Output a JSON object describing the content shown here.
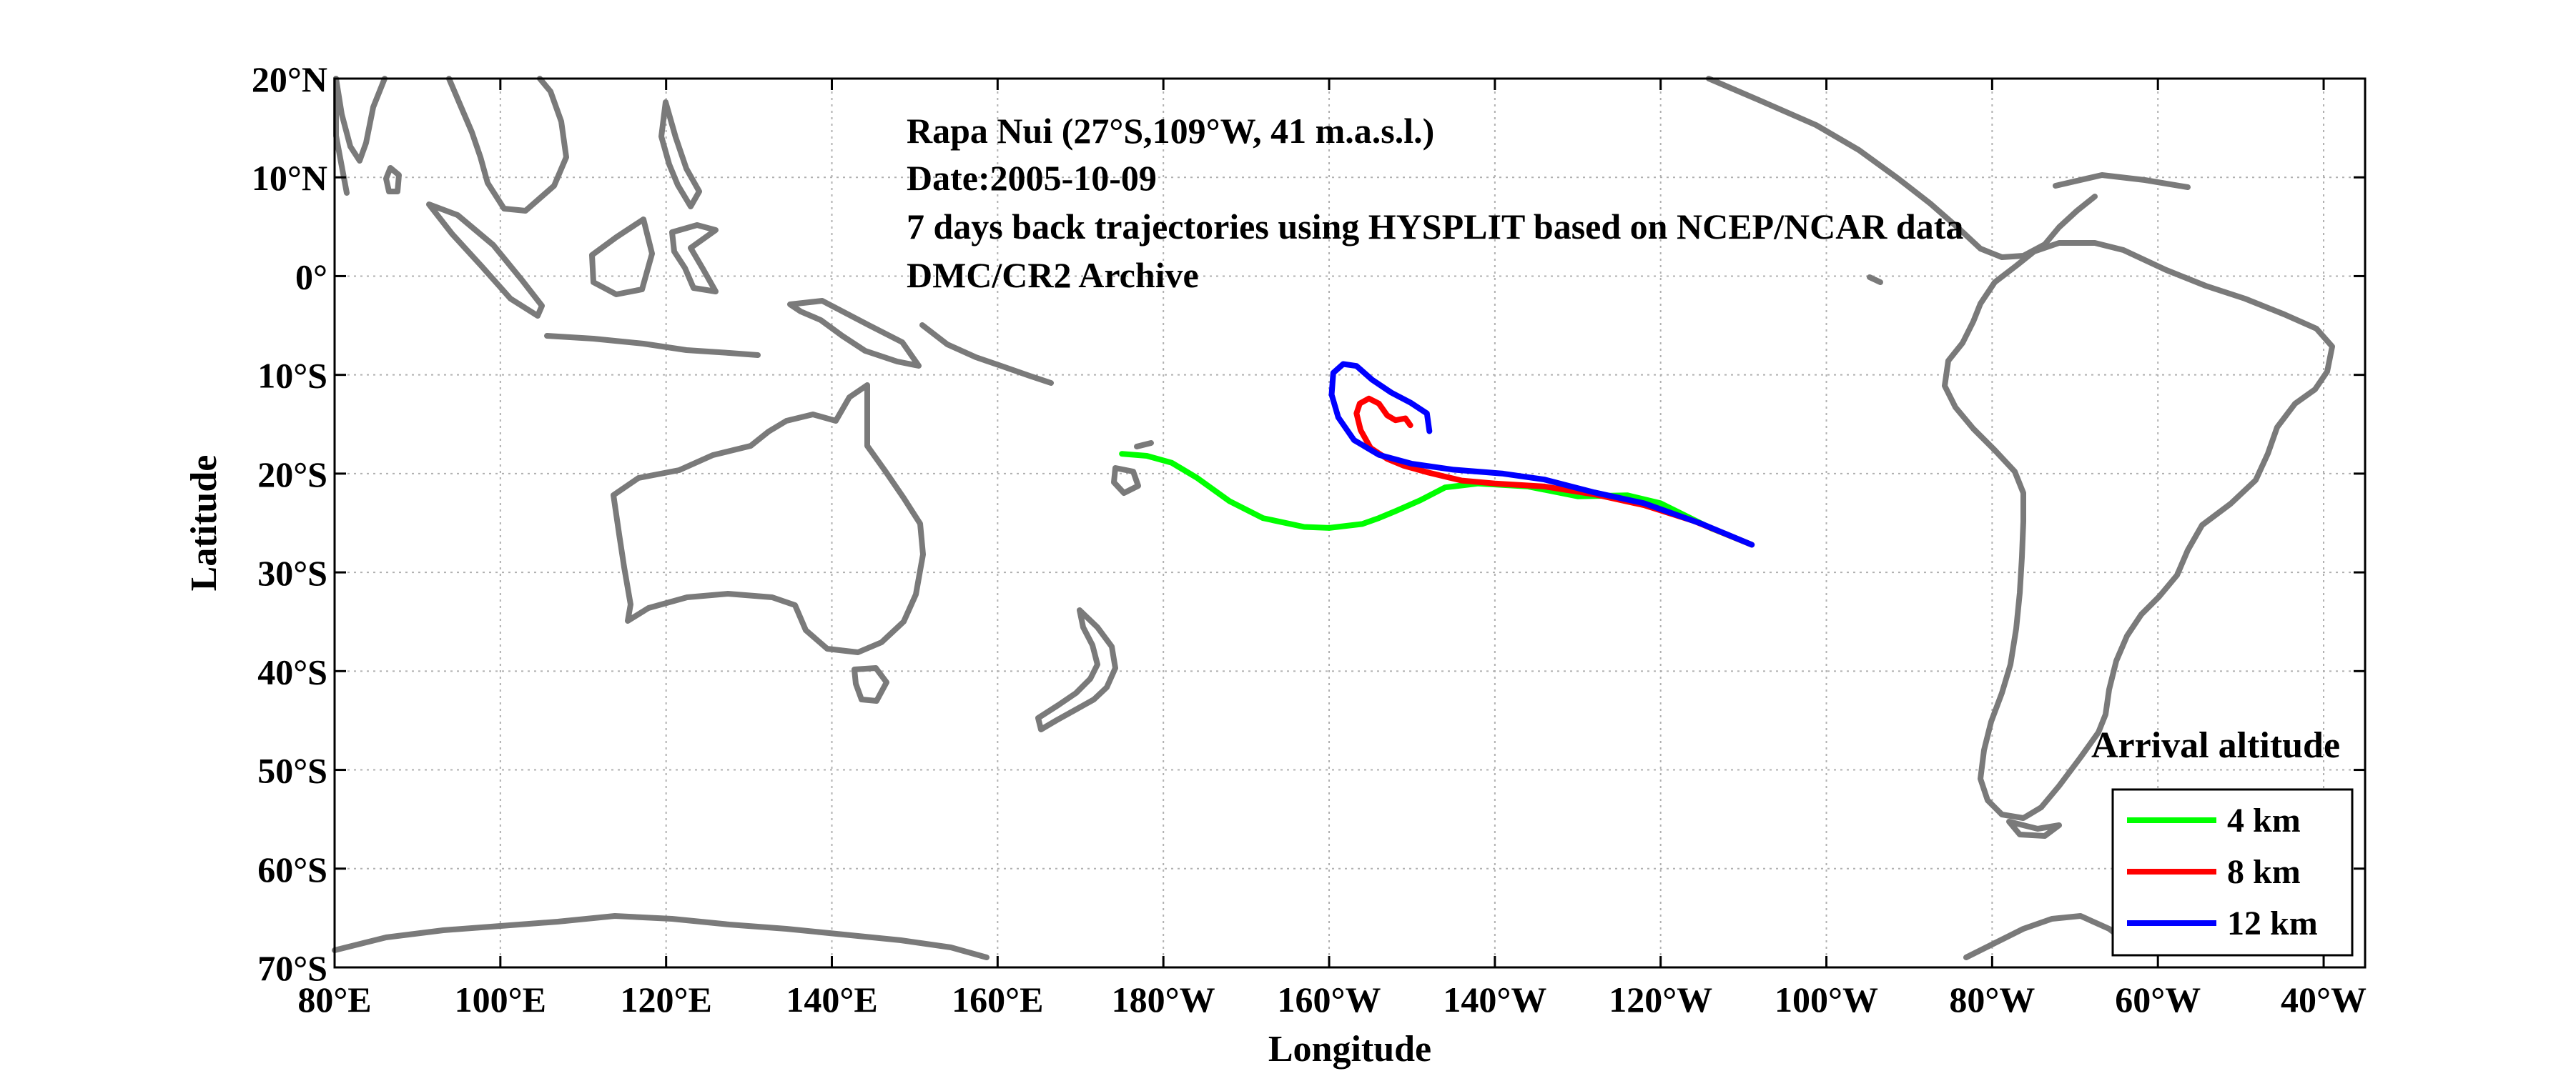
{
  "chart_data": {
    "type": "line",
    "xlabel": "Longitude",
    "ylabel": "Latitude",
    "xlim": [
      80,
      325
    ],
    "ylim": [
      -70,
      20
    ],
    "x_ticks": [
      {
        "value": 80,
        "label": "80°E"
      },
      {
        "value": 100,
        "label": "100°E"
      },
      {
        "value": 120,
        "label": "120°E"
      },
      {
        "value": 140,
        "label": "140°E"
      },
      {
        "value": 160,
        "label": "160°E"
      },
      {
        "value": 180,
        "label": "180°W"
      },
      {
        "value": 200,
        "label": "160°W"
      },
      {
        "value": 220,
        "label": "140°W"
      },
      {
        "value": 240,
        "label": "120°W"
      },
      {
        "value": 260,
        "label": "100°W"
      },
      {
        "value": 280,
        "label": "80°W"
      },
      {
        "value": 300,
        "label": "60°W"
      },
      {
        "value": 320,
        "label": "40°W"
      }
    ],
    "y_ticks": [
      {
        "value": 20,
        "label": "20°N"
      },
      {
        "value": 10,
        "label": "10°N"
      },
      {
        "value": 0,
        "label": "0°"
      },
      {
        "value": -10,
        "label": "10°S"
      },
      {
        "value": -20,
        "label": "20°S"
      },
      {
        "value": -30,
        "label": "30°S"
      },
      {
        "value": -40,
        "label": "40°S"
      },
      {
        "value": -50,
        "label": "50°S"
      },
      {
        "value": -60,
        "label": "60°S"
      },
      {
        "value": -70,
        "label": "70°S"
      }
    ],
    "annotations": [
      "Rapa Nui (27°S,109°W, 41 m.a.s.l.)",
      "Date:2005-10-09",
      "7 days back trajectories using HYSPLIT based on NCEP/NCAR data",
      "DMC/CR2 Archive"
    ],
    "legend_title": "Arrival altitude",
    "legend_position": "bottom-right",
    "grid": true,
    "series": [
      {
        "name": "4 km",
        "color": "#00ff00",
        "points": [
          [
            251,
            -27.2
          ],
          [
            246,
            -25.5
          ],
          [
            240,
            -23
          ],
          [
            236,
            -22.2
          ],
          [
            230,
            -22.3
          ],
          [
            224,
            -21.3
          ],
          [
            218,
            -21
          ],
          [
            214,
            -21.4
          ],
          [
            211,
            -22.7
          ],
          [
            208,
            -23.8
          ],
          [
            206,
            -24.5
          ],
          [
            204,
            -25.1
          ],
          [
            200,
            -25.5
          ],
          [
            197,
            -25.4
          ],
          [
            192,
            -24.5
          ],
          [
            188,
            -22.8
          ],
          [
            184,
            -20.4
          ],
          [
            181,
            -18.9
          ],
          [
            178,
            -18.2
          ],
          [
            175,
            -18
          ]
        ]
      },
      {
        "name": "8 km",
        "color": "#ff0000",
        "points": [
          [
            251,
            -27.2
          ],
          [
            244,
            -24.8
          ],
          [
            238,
            -23.2
          ],
          [
            232,
            -22.1
          ],
          [
            226,
            -21.3
          ],
          [
            220,
            -21
          ],
          [
            216,
            -20.7
          ],
          [
            212,
            -19.9
          ],
          [
            209,
            -19.2
          ],
          [
            207,
            -18.5
          ],
          [
            205,
            -17.4
          ],
          [
            203.8,
            -15.6
          ],
          [
            203.3,
            -13.9
          ],
          [
            203.7,
            -12.9
          ],
          [
            204.8,
            -12.4
          ],
          [
            206,
            -12.9
          ],
          [
            207,
            -14.1
          ],
          [
            208,
            -14.6
          ],
          [
            209.2,
            -14.4
          ],
          [
            209.8,
            -15.1
          ]
        ]
      },
      {
        "name": "12 km",
        "color": "#0000ff",
        "points": [
          [
            251,
            -27.2
          ],
          [
            245,
            -25.1
          ],
          [
            238,
            -23
          ],
          [
            232,
            -21.9
          ],
          [
            226,
            -20.6
          ],
          [
            221,
            -20
          ],
          [
            215,
            -19.6
          ],
          [
            210,
            -19
          ],
          [
            206,
            -18.1
          ],
          [
            203,
            -16.6
          ],
          [
            201.1,
            -14.3
          ],
          [
            200.3,
            -12
          ],
          [
            200.5,
            -9.8
          ],
          [
            201.7,
            -8.9
          ],
          [
            203.3,
            -9.1
          ],
          [
            205.2,
            -10.5
          ],
          [
            207.5,
            -11.8
          ],
          [
            209.8,
            -12.8
          ],
          [
            211.8,
            -13.9
          ],
          [
            212.1,
            -15.7
          ]
        ]
      }
    ]
  }
}
